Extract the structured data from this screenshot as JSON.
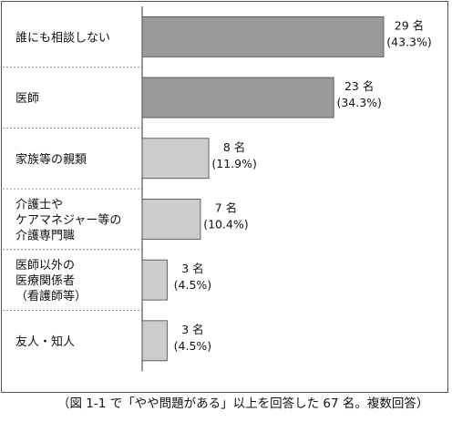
{
  "chart_data": {
    "type": "bar",
    "orientation": "horizontal",
    "categories": [
      "誰にも相談しない",
      "医師",
      "家族等の親類",
      "介護士やケアマネジャー等の介護専門職",
      "医師以外の医療関係者（看護師等）",
      "友人・知人"
    ],
    "category_lines": [
      [
        "誰にも相談しない"
      ],
      [
        "医師"
      ],
      [
        "家族等の親類"
      ],
      [
        "介護士や",
        "ケアマネジャー等の",
        "介護専門職"
      ],
      [
        "医師以外の",
        "医療関係者",
        "（看護師等）"
      ],
      [
        "友人・知人"
      ]
    ],
    "values": [
      29,
      23,
      8,
      7,
      3,
      3
    ],
    "percents": [
      43.3,
      34.3,
      11.9,
      10.4,
      4.5,
      4.5
    ],
    "value_labels": [
      "29 名",
      "23 名",
      "8 名",
      "7 名",
      "3 名",
      "3 名"
    ],
    "percent_labels": [
      "(43.3%)",
      "(34.3%)",
      "(11.9%)",
      "(10.4%)",
      "(4.5%)",
      "(4.5%)"
    ],
    "highlight_colors": [
      "#9a9a9a",
      "#9a9a9a",
      "#cccccc",
      "#cccccc",
      "#cccccc",
      "#cccccc"
    ],
    "grid": false,
    "title": "",
    "xlabel": "",
    "ylabel": ""
  },
  "caption": "（図 1-1 で「やや問題がある」以上を回答した 67 名。複数回答）"
}
